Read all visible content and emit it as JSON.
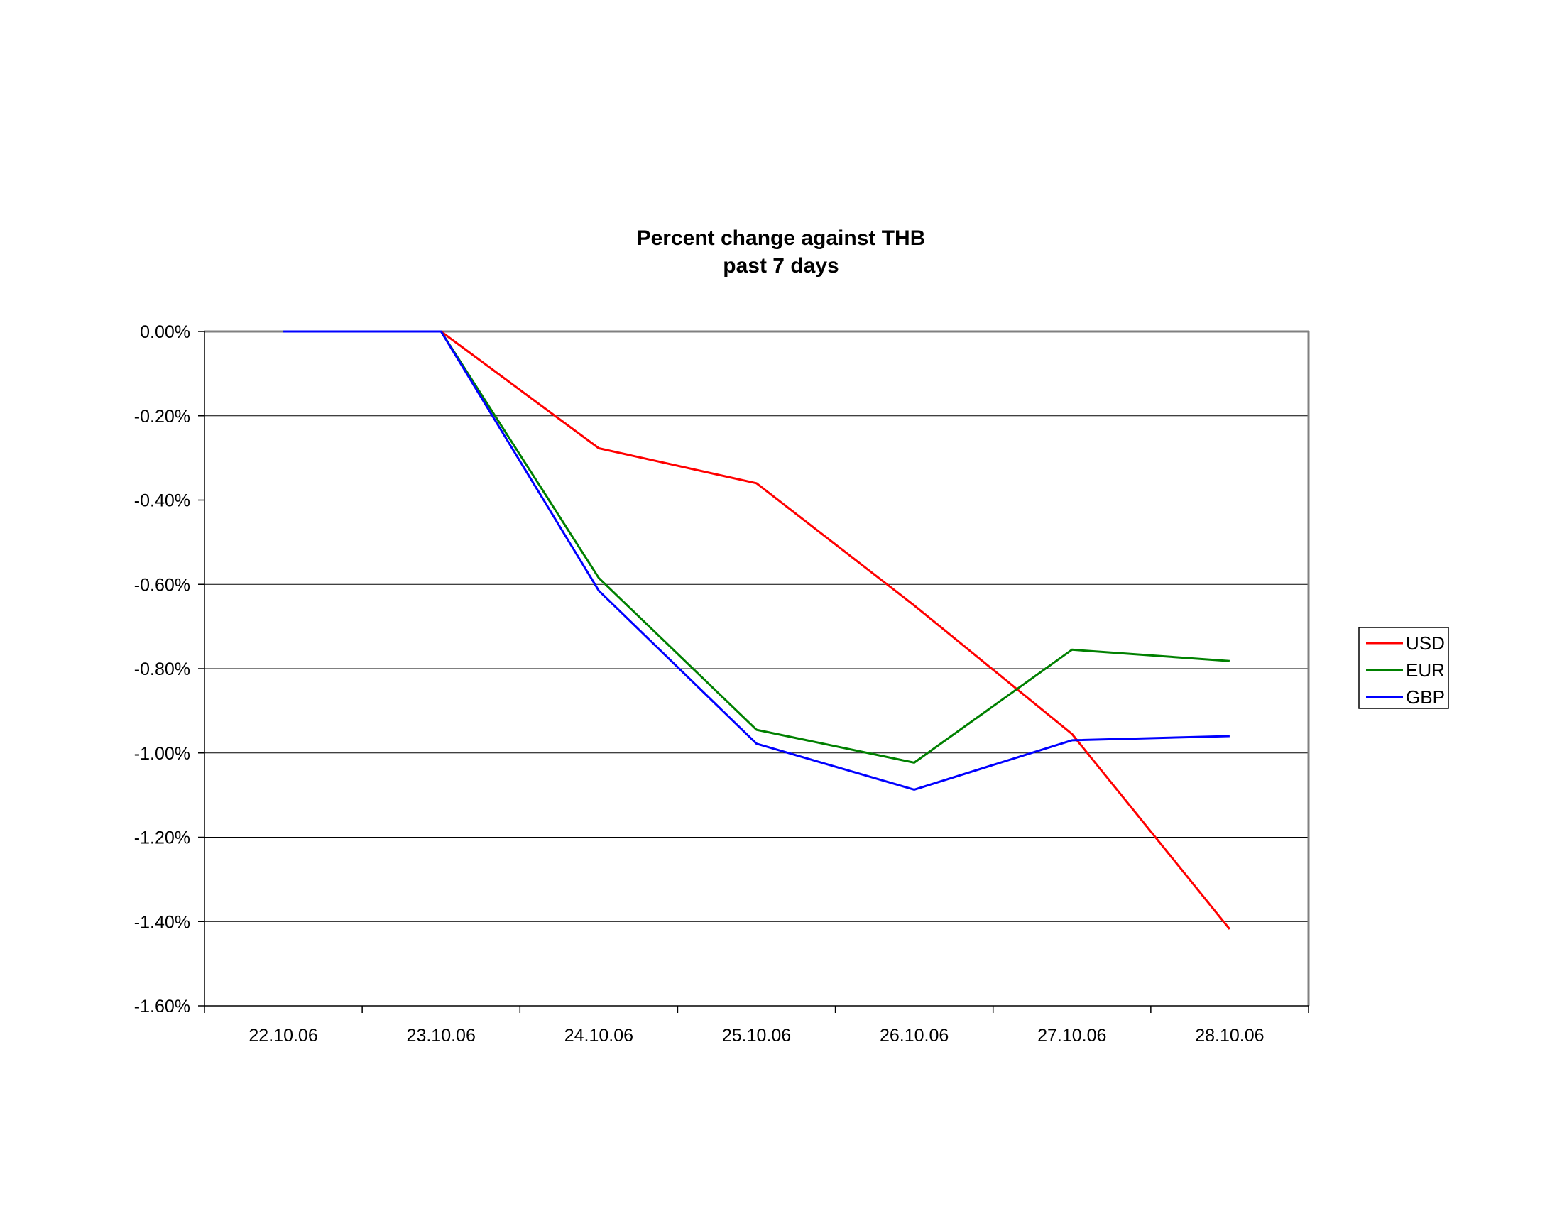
{
  "chart_data": {
    "type": "line",
    "title": "Percent change against THB",
    "subtitle": "past 7 days",
    "xlabel": "",
    "ylabel": "",
    "categories": [
      "22.10.06",
      "23.10.06",
      "24.10.06",
      "25.10.06",
      "26.10.06",
      "27.10.06",
      "28.10.06"
    ],
    "ylim": [
      -1.6,
      0.0
    ],
    "yticks": [
      0.0,
      -0.2,
      -0.4,
      -0.6,
      -0.8,
      -1.0,
      -1.2,
      -1.4,
      -1.6
    ],
    "ytick_labels": [
      "0.00%",
      "-0.20%",
      "-0.40%",
      "-0.60%",
      "-0.80%",
      "-1.00%",
      "-1.20%",
      "-1.40%",
      "-1.60%"
    ],
    "grid": true,
    "legend_position": "right",
    "series": [
      {
        "name": "USD",
        "color": "#ff0000",
        "values": [
          0.0,
          0.0,
          -0.277,
          -0.36,
          -0.65,
          -0.955,
          -1.418
        ]
      },
      {
        "name": "EUR",
        "color": "#008000",
        "values": [
          0.0,
          0.0,
          -0.585,
          -0.945,
          -1.023,
          -0.755,
          -0.782
        ]
      },
      {
        "name": "GBP",
        "color": "#0000ff",
        "values": [
          0.0,
          0.0,
          -0.615,
          -0.978,
          -1.087,
          -0.97,
          -0.96
        ]
      }
    ]
  }
}
